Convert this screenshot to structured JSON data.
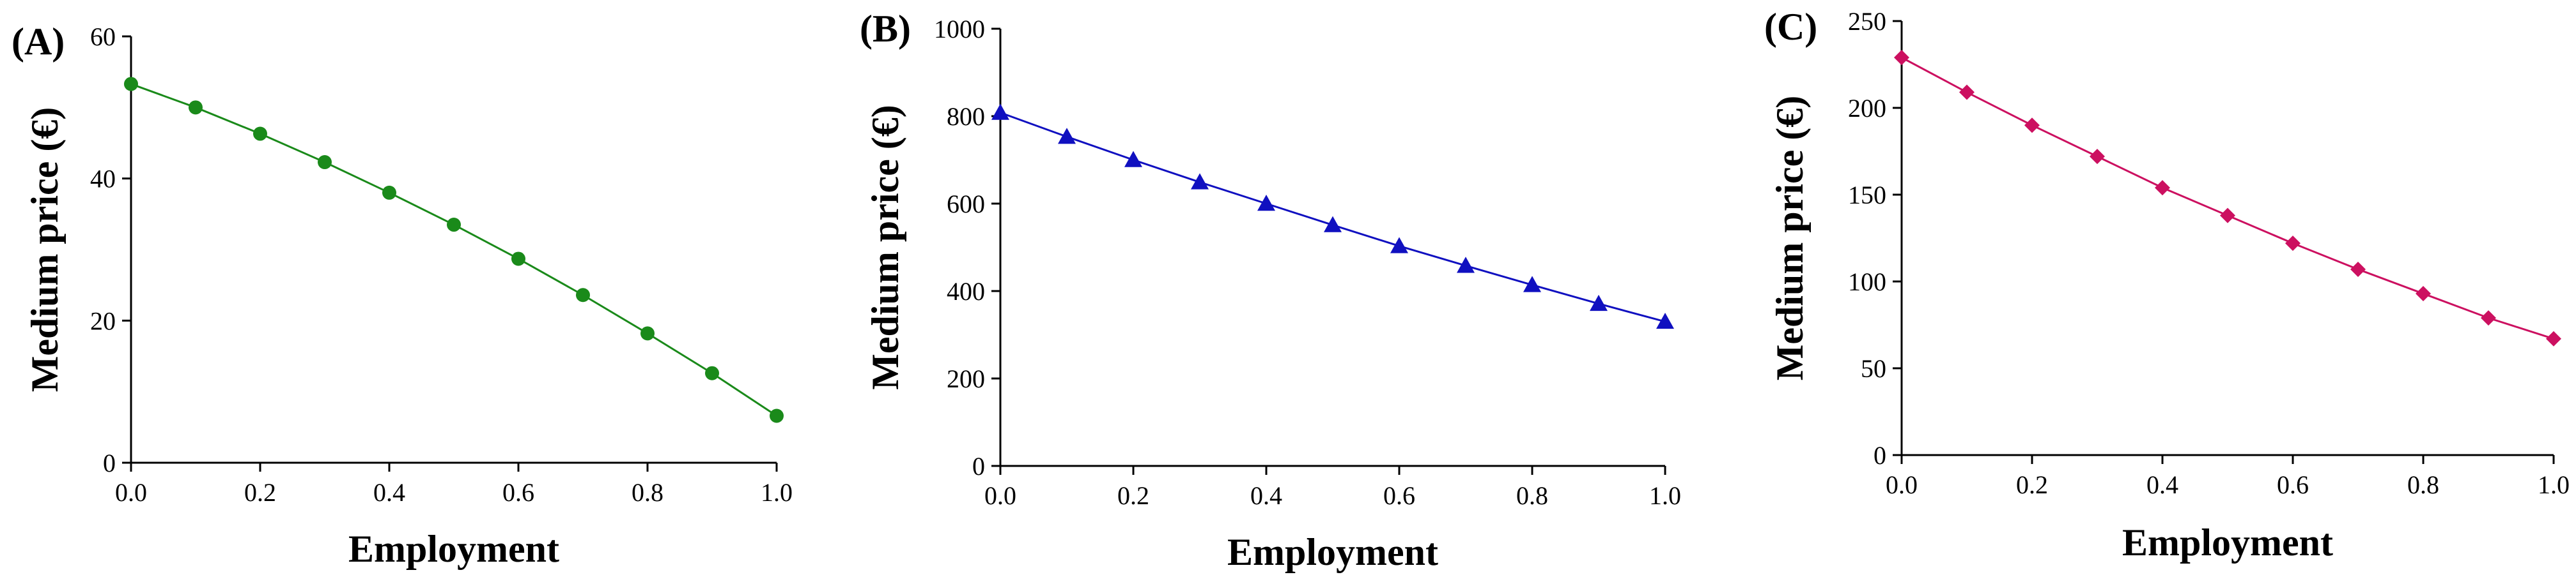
{
  "chart_data": [
    {
      "type": "line",
      "panel_label": "(A)",
      "xlabel": "Employment",
      "ylabel": "Medium price (€)",
      "xlim": [
        0,
        1.0
      ],
      "ylim": [
        0,
        60
      ],
      "xticks": [
        "0.0",
        "0.2",
        "0.4",
        "0.6",
        "0.8",
        "1.0"
      ],
      "xtick_values": [
        0,
        0.2,
        0.4,
        0.6,
        0.8,
        1.0
      ],
      "yticks": [
        "0",
        "20",
        "40",
        "60"
      ],
      "ytick_values": [
        0,
        20,
        40,
        60
      ],
      "grid": false,
      "color": "#1a8a1a",
      "marker": "circle",
      "x": [
        0,
        0.1,
        0.2,
        0.3,
        0.4,
        0.5,
        0.6,
        0.7,
        0.8,
        0.9,
        1.0
      ],
      "y": [
        53.3,
        50.0,
        46.3,
        42.3,
        38.0,
        33.5,
        28.7,
        23.6,
        18.2,
        12.6,
        6.6
      ]
    },
    {
      "type": "line",
      "panel_label": "(B)",
      "xlabel": "Employment",
      "ylabel": "Medium price (€)",
      "xlim": [
        0,
        1.0
      ],
      "ylim": [
        0,
        1000
      ],
      "xticks": [
        "0.0",
        "0.2",
        "0.4",
        "0.6",
        "0.8",
        "1.0"
      ],
      "xtick_values": [
        0,
        0.2,
        0.4,
        0.6,
        0.8,
        1.0
      ],
      "yticks": [
        "0",
        "200",
        "400",
        "600",
        "800",
        "1000"
      ],
      "ytick_values": [
        0,
        200,
        400,
        600,
        800,
        1000
      ],
      "grid": false,
      "color": "#1010c0",
      "marker": "triangle",
      "x": [
        0,
        0.1,
        0.2,
        0.3,
        0.4,
        0.5,
        0.6,
        0.7,
        0.8,
        0.9,
        1.0
      ],
      "y": [
        808,
        753,
        700,
        649,
        600,
        551,
        503,
        458,
        414,
        371,
        330
      ]
    },
    {
      "type": "line",
      "panel_label": "(C)",
      "xlabel": "Employment",
      "ylabel": "Medium price (€)",
      "xlim": [
        0,
        1.0
      ],
      "ylim": [
        0,
        250
      ],
      "xticks": [
        "0.0",
        "0.2",
        "0.4",
        "0.6",
        "0.8",
        "1.0"
      ],
      "xtick_values": [
        0,
        0.2,
        0.4,
        0.6,
        0.8,
        1.0
      ],
      "yticks": [
        "0",
        "50",
        "100",
        "150",
        "200",
        "250"
      ],
      "ytick_values": [
        0,
        50,
        100,
        150,
        200,
        250
      ],
      "grid": false,
      "color": "#cc1060",
      "marker": "diamond",
      "x": [
        0,
        0.1,
        0.2,
        0.3,
        0.4,
        0.5,
        0.6,
        0.7,
        0.8,
        0.9,
        1.0
      ],
      "y": [
        229,
        209,
        190,
        172,
        154,
        138,
        122,
        107,
        93,
        79,
        67
      ]
    }
  ]
}
